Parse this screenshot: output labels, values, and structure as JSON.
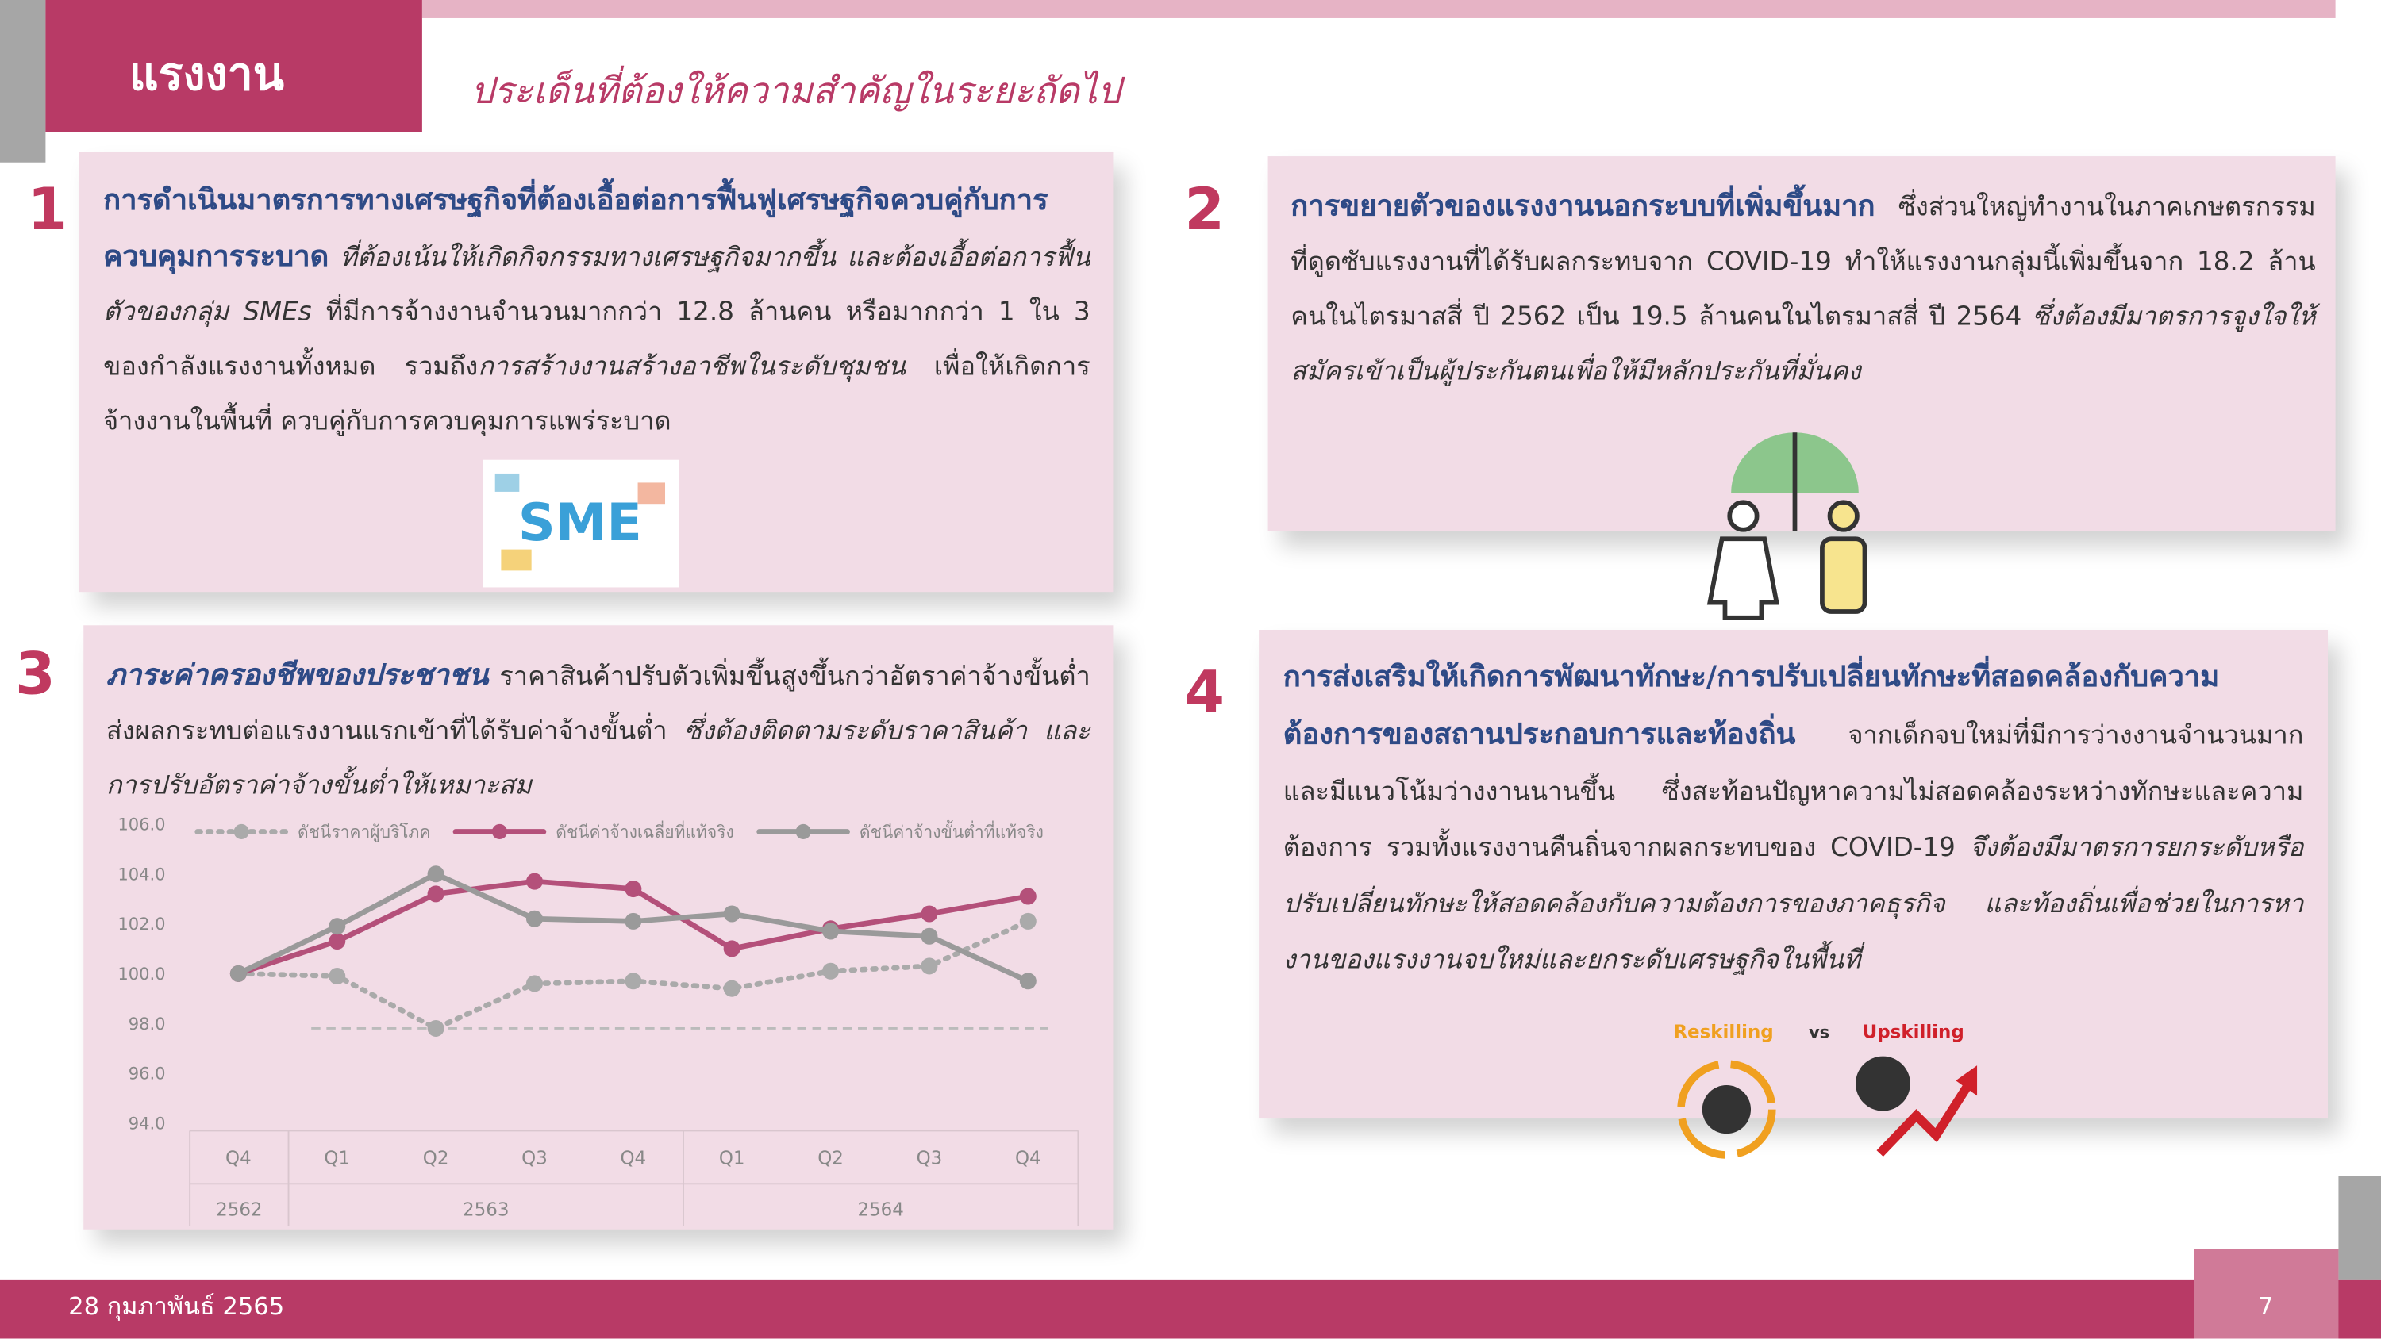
{
  "header": {
    "title": "แรงงาน",
    "subtitle": "ประเด็นที่ต้องให้ความสำคัญในระยะถัดไป"
  },
  "boxes": [
    {
      "number": "1",
      "segments": [
        {
          "text": "การดำเนินมาตรการทางเศรษฐกิจที่ต้องเอื้อต่อการฟื้นฟูเศรษฐกิจควบคู่กับการควบคุมการระบาด",
          "style": "bold"
        },
        {
          "text": "  ที่ต้องเน้นให้เกิดกิจกรรมทางเศรษฐกิจมากขึ้น และต้องเอื้อต่อการฟื้นตัวของกลุ่ม SMEs",
          "style": "italic"
        },
        {
          "text": " ที่มีการจ้างงานจำนวนมากกว่า 12.8 ล้านคน หรือมากกว่า 1 ใน 3 ของกำลังแรงงานทั้งหมด รวมถึง",
          "style": "normal"
        },
        {
          "text": "การสร้างงานสร้างอาชีพในระดับชุมชน",
          "style": "italic"
        },
        {
          "text": " เพื่อให้เกิดการจ้างงานในพื้นที่ ควบคู่กับการควบคุมการแพร่ระบาด",
          "style": "normal"
        }
      ]
    },
    {
      "number": "2",
      "segments": [
        {
          "text": "การขยายตัวของแรงงานนอกระบบที่เพิ่มขึ้นมาก",
          "style": "bold"
        },
        {
          "text": " ซึ่งส่วนใหญ่ทำงานในภาคเกษตรกรรมที่ดูดซับแรงงานที่ได้รับผลกระทบจาก COVID-19 ทำให้แรงงานกลุ่มนี้เพิ่มขึ้นจาก 18.2 ล้านคนในไตรมาสสี่ ปี 2562 เป็น 19.5 ล้านคนในไตรมาสสี่ ปี 2564",
          "style": "normal"
        },
        {
          "text": " ซึ่งต้องมีมาตรการจูงใจให้สมัครเข้าเป็นผู้ประกันตนเพื่อให้มีหลักประกันที่มั่นคง",
          "style": "italic"
        }
      ]
    },
    {
      "number": "3",
      "segments": [
        {
          "text": "ภาระค่าครองชีพของประชาชน",
          "style": "bold-italic"
        },
        {
          "text": " ราคาสินค้าปรับตัวเพิ่มขึ้นสูงขึ้นกว่าอัตราค่าจ้างขั้นต่ำ ส่งผลกระทบต่อแรงงานแรกเข้าที่ได้รับค่าจ้างขั้นต่ำ",
          "style": "normal"
        },
        {
          "text": " ซึ่งต้องติดตามระดับราคาสินค้า และการปรับอัตราค่าจ้างขั้นต่ำให้เหมาะสม",
          "style": "italic"
        }
      ]
    },
    {
      "number": "4",
      "segments": [
        {
          "text": "การส่งเสริมให้เกิดการพัฒนาทักษะ/การปรับเปลี่ยนทักษะที่สอดคล้องกับความต้องการของสถานประกอบการและท้องถิ่น",
          "style": "bold"
        },
        {
          "text": " จากเด็กจบใหม่ที่มีการว่างงานจำนวนมากและมีแนวโน้มว่างงานนานขึ้น ซึ่งสะท้อนปัญหาความไม่สอดคล้องระหว่างทักษะและความต้องการ รวมทั้งแรงงานคืนถิ่นจากผลกระทบของ COVID-19 ",
          "style": "normal"
        },
        {
          "text": "จึงต้องมีมาตรการยกระดับหรือปรับเปลี่ยนทักษะให้สอดคล้องกับความต้องการของภาคธุรกิจ และท้องถิ่นเพื่อช่วยในการหางานของแรงงานจบใหม่และยกระดับเศรษฐกิจในพื้นที่",
          "style": "italic"
        }
      ]
    }
  ],
  "images": {
    "sme": "SME",
    "reskilling": "Reskilling",
    "vs": "vs",
    "upskilling": "Upskilling"
  },
  "chart_data": {
    "type": "line",
    "categories": [
      "Q4",
      "Q1",
      "Q2",
      "Q3",
      "Q4",
      "Q1",
      "Q2",
      "Q3",
      "Q4"
    ],
    "x_groups": [
      {
        "label": "2562",
        "count": 1
      },
      {
        "label": "2563",
        "count": 4
      },
      {
        "label": "2564",
        "count": 4
      }
    ],
    "series": [
      {
        "name": "ดัชนีราคาผู้บริโภค",
        "color": "#aaaaaa",
        "line_style": "dotted",
        "values": [
          100,
          99.9,
          97.8,
          99.6,
          99.7,
          99.4,
          100.1,
          100.3,
          102.1
        ]
      },
      {
        "name": "ดัชนีค่าจ้างเฉลี่ยที่แท้จริง",
        "color": "#b4507a",
        "line_style": "solid",
        "values": [
          100,
          101.3,
          103.2,
          103.7,
          103.4,
          101.0,
          101.8,
          102.4,
          103.1
        ]
      },
      {
        "name": "ดัชนีค่าจ้างขั้นต่ำที่แท้จริง",
        "color": "#9a9a9a",
        "line_style": "solid",
        "values": [
          100,
          101.9,
          104.0,
          102.2,
          102.1,
          102.4,
          101.7,
          101.5,
          99.7
        ]
      }
    ],
    "reference_line": 97.8,
    "ylim": [
      94,
      106
    ],
    "yticks": [
      {
        "value": 94,
        "label": "94.0"
      },
      {
        "value": 96,
        "label": "96.0"
      },
      {
        "value": 98,
        "label": "98.0"
      },
      {
        "value": 100,
        "label": "100.0"
      },
      {
        "value": 102,
        "label": "102.0"
      },
      {
        "value": 104,
        "label": "104.0"
      },
      {
        "value": 106,
        "label": "106.0"
      }
    ],
    "grid": false
  },
  "footer": {
    "date": "28 กุมภาพันธ์ 2565",
    "page": "7"
  }
}
